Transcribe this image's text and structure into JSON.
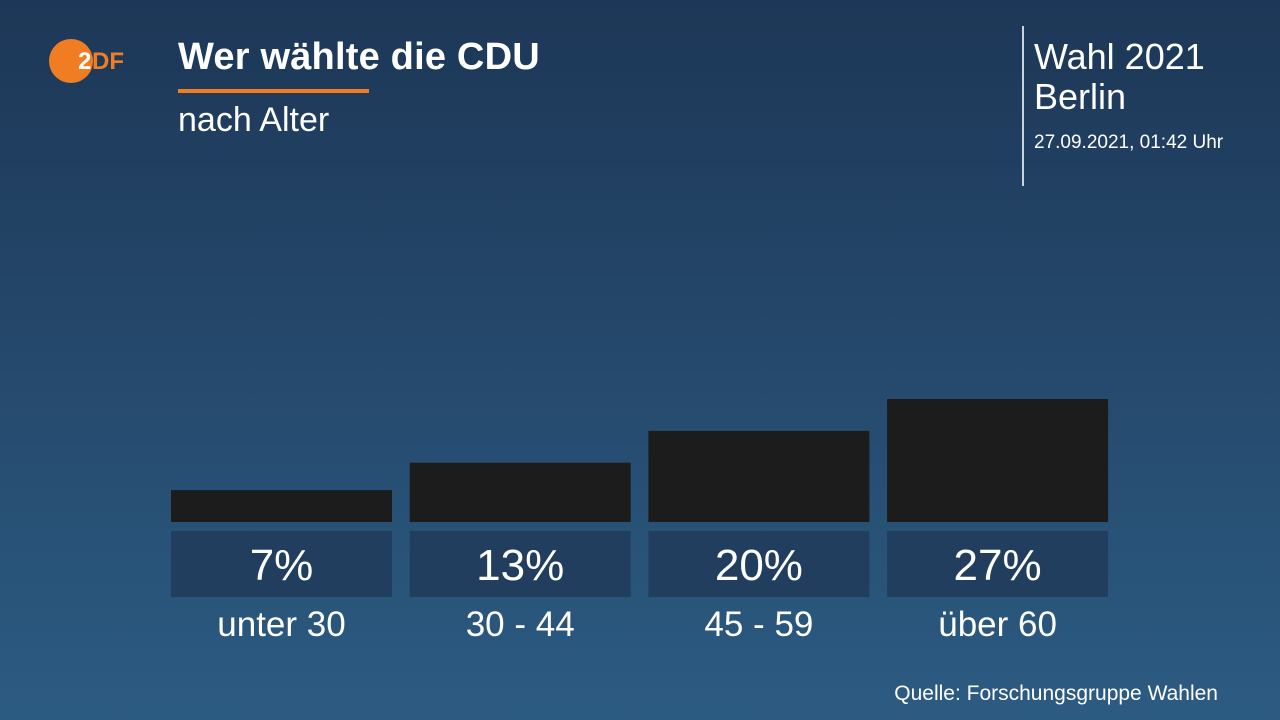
{
  "brand": {
    "logo_text": "2DF",
    "logo_color": "#f07d22"
  },
  "header": {
    "title": "Wer wählte die CDU",
    "subtitle": "nach Alter"
  },
  "election": {
    "title": "Wahl 2021",
    "place": "Berlin",
    "timestamp": "27.09.2021, 01:42 Uhr"
  },
  "chart_data": {
    "type": "bar",
    "categories": [
      "unter 30",
      "30 - 44",
      "45 - 59",
      "über 60"
    ],
    "values": [
      7,
      13,
      20,
      27
    ],
    "value_labels": [
      "7%",
      "13%",
      "20%",
      "27%"
    ],
    "bar_color": "#1c1c1c",
    "label_box_color": "#213e5e",
    "ylim": [
      0,
      27
    ]
  },
  "footer": {
    "source": "Quelle: Forschungsgruppe Wahlen"
  }
}
